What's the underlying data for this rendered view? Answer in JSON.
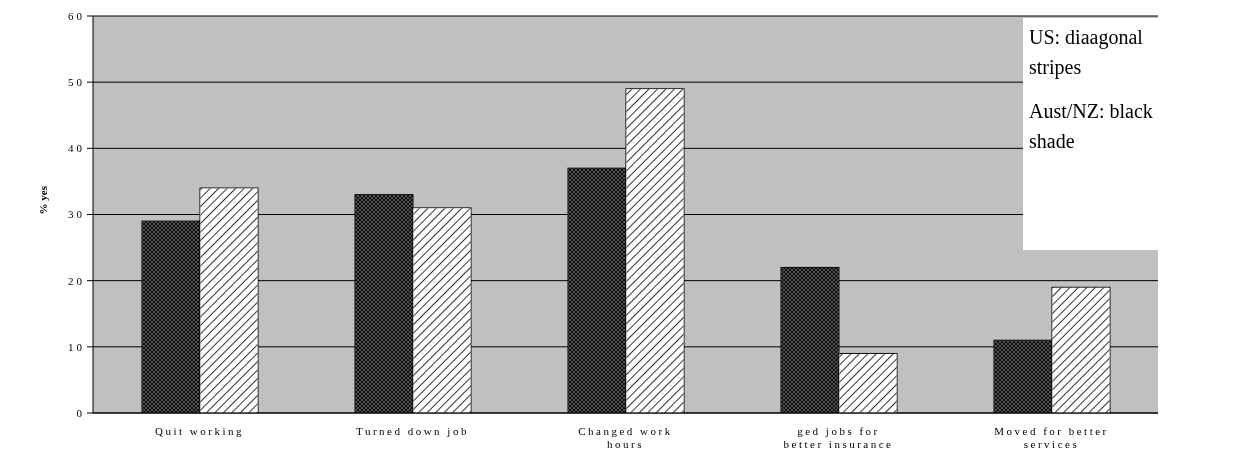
{
  "chart_data": {
    "type": "bar",
    "ylabel": "% yes",
    "categories": [
      "Quit working",
      "Turned down job",
      "Changed work hours",
      "ged jobs for better insurance",
      "Moved for better services"
    ],
    "series": [
      {
        "color": "#505050",
        "values": [
          29,
          33,
          37,
          22,
          11
        ]
      },
      {
        "color": "#ffffff",
        "values": [
          34,
          31,
          49,
          9,
          19
        ]
      }
    ],
    "ylim": [
      0,
      60
    ],
    "yticks": [
      0,
      10,
      20,
      30,
      40,
      50,
      60
    ],
    "grid": "y",
    "legend": false,
    "annotations": [
      "US: diaagonal stripes",
      "Aust/NZ: black shade"
    ]
  }
}
